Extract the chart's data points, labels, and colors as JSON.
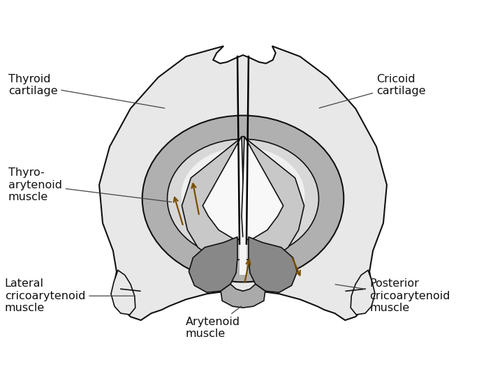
{
  "background_color": "#ffffff",
  "thyroid_color": "#e8e8e8",
  "cricoid_outer_color": "#b0b0b0",
  "cricoid_inner_color": "#d8d8d8",
  "muscle_gray": "#aaaaaa",
  "muscle_dark": "#888888",
  "outline_color": "#111111",
  "arrow_color": "#7a4f00",
  "label_color": "#111111",
  "label_fontsize": 11.5,
  "labels": {
    "thyroid_cartilage": "Thyroid\ncartilage",
    "cricoid_cartilage": "Cricoid\ncartilage",
    "thyro_arytenoid": "Thyro-\narytenoid\nmuscle",
    "lateral_crico": "Lateral\ncricoarytenoid\nmuscle",
    "arytenoid": "Arytenoid\nmuscle",
    "posterior_crico": "Posterior\ncricoarytenoid\nmuscle"
  },
  "figsize": [
    6.96,
    5.39
  ],
  "dpi": 100
}
